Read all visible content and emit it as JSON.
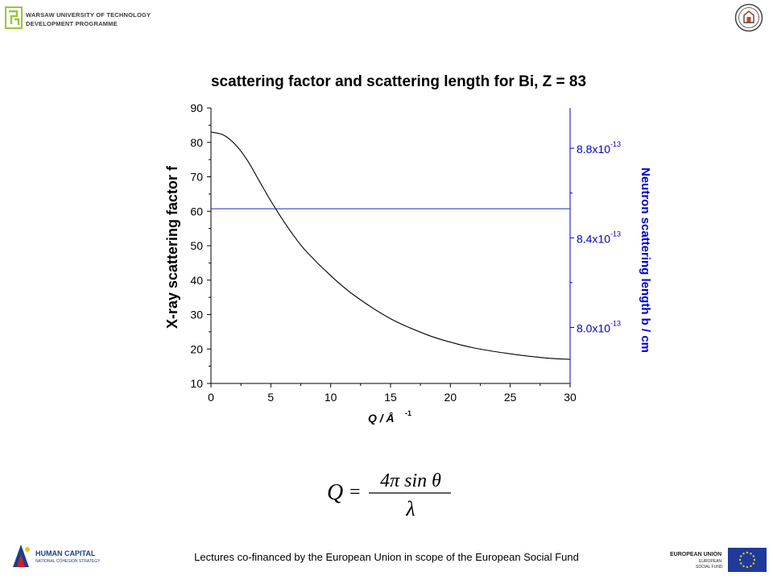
{
  "header": {
    "institution_line1": "WARSAW UNIVERSITY OF TECHNOLOGY",
    "institution_line2": "DEVELOPMENT PROGRAMME",
    "logo_icon": "wut-logo-icon",
    "seal_icon": "university-seal-icon"
  },
  "chart_data": {
    "type": "line",
    "title": "scattering factor and scattering length for Bi, Z = 83",
    "xlabel": "Q / Å",
    "xlabel_exponent": "-1",
    "ylabel": "X-ray scattering factor f",
    "y2label": "Neutron scattering length b / cm",
    "xlim": [
      0,
      30
    ],
    "ylim": [
      10,
      90
    ],
    "xticks": [
      0,
      5,
      10,
      15,
      20,
      25,
      30
    ],
    "yticks": [
      10,
      20,
      30,
      40,
      50,
      60,
      70,
      80,
      90
    ],
    "y2lim": [
      7.75e-13,
      8.98e-13
    ],
    "y2ticks": [
      {
        "value": 8.8e-13,
        "mantissa": "8.8x10",
        "exponent": "-13"
      },
      {
        "value": 8.4e-13,
        "mantissa": "8.4x10",
        "exponent": "-13"
      },
      {
        "value": 8e-13,
        "mantissa": "8.0x10",
        "exponent": "-13"
      }
    ],
    "series": [
      {
        "axis": "left",
        "color": "#000000",
        "x": [
          0,
          1,
          2,
          3,
          4,
          5,
          6,
          7,
          8,
          10,
          12,
          15,
          18,
          20,
          22,
          25,
          28,
          30
        ],
        "y": [
          83.0,
          82.2,
          79.5,
          75.0,
          69.0,
          63.0,
          57.5,
          52.5,
          48.2,
          41.3,
          35.5,
          28.8,
          24.2,
          22.0,
          20.3,
          18.6,
          17.4,
          17.0
        ]
      },
      {
        "axis": "right",
        "color": "#1a2ab0",
        "x": [
          0,
          30
        ],
        "y": [
          8.53e-13,
          8.53e-13
        ]
      }
    ],
    "colors": {
      "left_axis": "#000000",
      "right_axis": "#0000cc"
    },
    "grid": false
  },
  "formula": {
    "lhs": "Q",
    "numerator": "4π sin θ",
    "denominator": "λ"
  },
  "footer": {
    "text": "Lectures co-financed by the European Union in scope of the European Social Fund",
    "hc_logo_title": "HUMAN CAPITAL",
    "hc_logo_sub": "NATIONAL COHESION STRATEGY",
    "eu_logo_title": "EUROPEAN UNION",
    "eu_logo_sub1": "EUROPEAN",
    "eu_logo_sub2": "SOCIAL FUND"
  }
}
